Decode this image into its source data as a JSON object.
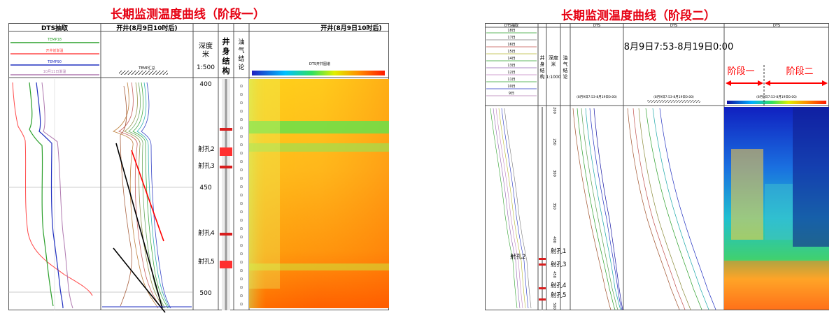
{
  "titles": {
    "left": "长期监测温度曲线（阶段一）",
    "right": "长期监测温度曲线（阶段二）"
  },
  "colors": {
    "title": "#e60012",
    "marker": "#d81e1e",
    "arrow": "#ff0000"
  },
  "left": {
    "col1": {
      "header": "DTS抽取",
      "legend": [
        {
          "label": "TEMP18",
          "color": "#2ca02c"
        },
        {
          "label": "开井前渐温",
          "color": "#ff4a4a"
        },
        {
          "label": "TEMP90",
          "color": "#2030c0"
        },
        {
          "label": "10月11日渐温",
          "color": "#b07ab0"
        }
      ]
    },
    "col2": {
      "header": "开井(8月9日10时后)",
      "sub": "TEMP汇总"
    },
    "depth": {
      "header": "深度米",
      "scale": "1:500",
      "ticks": [
        "400",
        "450",
        "500"
      ]
    },
    "well": {
      "header": "井身结构"
    },
    "oil": {
      "header": "油气结论"
    },
    "heatmap": {
      "header": "开井(8月9日10时后)",
      "sub": "DTS开井图谱"
    },
    "labels": [
      "射孔2",
      "射孔3",
      "射孔4",
      "射孔5"
    ]
  },
  "right": {
    "col1": {
      "header": "DTS抽取",
      "stage_numbers": [
        "18日",
        "17日",
        "16日",
        "15日",
        "14日",
        "13日",
        "12日",
        "11日",
        "10日",
        "9日"
      ]
    },
    "well": {
      "header": "井身结构"
    },
    "depth": {
      "header": "深度米",
      "scale": "1:1000",
      "ticks": [
        "200",
        "250",
        "300",
        "350",
        "400",
        "450",
        "500"
      ]
    },
    "oil": {
      "header": "油气结论"
    },
    "dts1": {
      "header": "DTS",
      "sub": "(8月9日7:53-8月19日0:00)"
    },
    "dts2": {
      "header": "DTS",
      "sub": "(8月9日7:53-8月19日0:00)"
    },
    "dts3": {
      "header": "DTS",
      "sub": "(8月9日7:53-8月19日0:00)"
    },
    "date_range": "8月9日7:53-8月19日0:00",
    "stage1": "阶段一",
    "stage2": "阶段二",
    "labels": [
      "射孔1",
      "射孔2",
      "射孔3",
      "射孔4",
      "射孔5"
    ]
  },
  "chart_data": [
    {
      "type": "line",
      "title": "长期监测温度曲线（阶段一）",
      "ylabel": "深度米",
      "ylim": [
        395,
        505
      ],
      "y_axis_inverted": true,
      "series": [
        {
          "name": "TEMP18",
          "color": "#2ca02c"
        },
        {
          "name": "开井前渐温",
          "color": "#ff4a4a"
        },
        {
          "name": "TEMP90",
          "color": "#2030c0"
        },
        {
          "name": "10月11日渐温",
          "color": "#b07ab0"
        }
      ],
      "perforations": [
        {
          "label": "射孔2",
          "depth": 434
        },
        {
          "label": "射孔3",
          "depth": 441
        },
        {
          "label": "射孔4",
          "depth": 470
        },
        {
          "label": "射孔5",
          "depth": 484
        }
      ]
    },
    {
      "type": "heatmap",
      "title": "长期监测温度曲线（阶段二）",
      "ylabel": "深度米",
      "ylim": [
        195,
        505
      ],
      "y_axis_inverted": true,
      "time_range": "8月9日7:53-8月19日0:00",
      "stages": [
        "阶段一",
        "阶段二"
      ],
      "perforations": [
        {
          "label": "射孔1",
          "depth": 423
        },
        {
          "label": "射孔2",
          "depth": 431
        },
        {
          "label": "射孔3",
          "depth": 439
        },
        {
          "label": "射孔4",
          "depth": 469
        },
        {
          "label": "射孔5",
          "depth": 482
        }
      ]
    }
  ]
}
